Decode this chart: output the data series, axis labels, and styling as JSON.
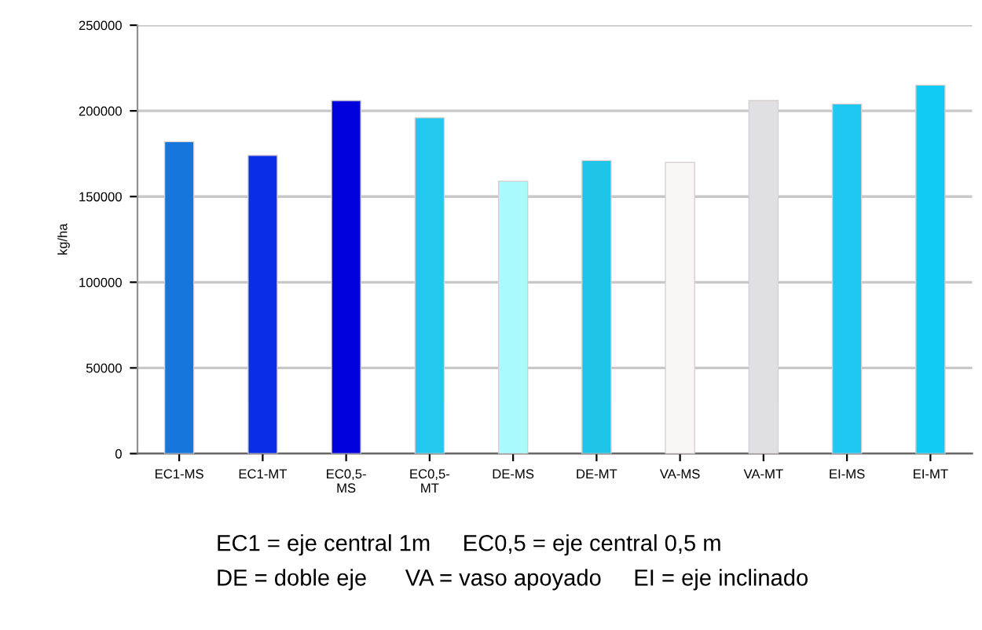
{
  "chart_data": {
    "type": "bar",
    "ylabel": "kg/ha",
    "categories": [
      "EC1-MS",
      "EC1-MT",
      "EC0,5-\nMS",
      "EC0,5-\nMT",
      "DE-MS",
      "DE-MT",
      "VA-MS",
      "VA-MT",
      "EI-MS",
      "EI-MT"
    ],
    "values": [
      182000,
      174000,
      206000,
      196000,
      159000,
      171000,
      170000,
      206000,
      204000,
      215000
    ],
    "colors": [
      "#1577dd",
      "#0a2ee8",
      "#0000dd",
      "#22c8ee",
      "#a8fafc",
      "#1ec4e8",
      "#faf6f6",
      "#e0e0e4",
      "#1ec8f0",
      "#10ccf4"
    ],
    "ylim": [
      0,
      250000
    ],
    "yticks": [
      0,
      50000,
      100000,
      150000,
      200000,
      250000
    ],
    "grid": "y",
    "annotations": [
      "EC1 = eje central 1m     EC0,5 = eje central 0,5 m",
      "DE = doble eje      VA = vaso apoyado     EI = eje inclinado"
    ]
  }
}
